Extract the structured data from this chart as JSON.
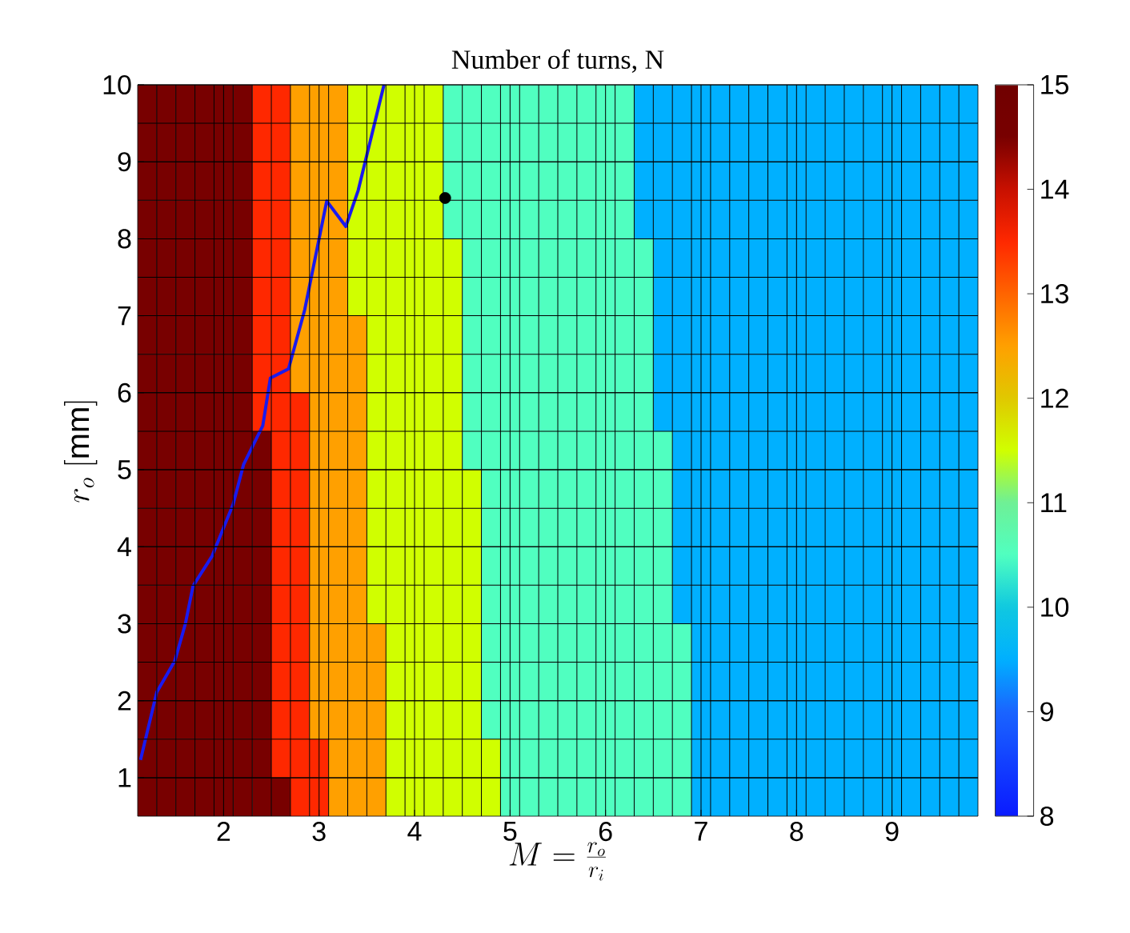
{
  "chart_data": {
    "type": "heatmap",
    "title": "Number of turns, N",
    "xlabel": "M = \\frac{r_o}{r_i}",
    "ylabel": "r_o\\ [\\mathrm{mm}]",
    "cells": [
      [
        14.5,
        14.5,
        14.5,
        14.5,
        14.5,
        14.5,
        13.5,
        13.5,
        12.5,
        12.5,
        12.5,
        11.5,
        11.5,
        11.5,
        11.5,
        11.5,
        10.5,
        10.5,
        10.5,
        10.5,
        10.5,
        10.5,
        10.5,
        10.5,
        10.5,
        10.5,
        9.5,
        9.5,
        9.5,
        9.5,
        9.5,
        9.5,
        9.5,
        9.5,
        9.5,
        9.5,
        9.5,
        9.5,
        9.5,
        9.5,
        9.5,
        9.5,
        9.5,
        9.5
      ],
      [
        14.5,
        14.5,
        14.5,
        14.5,
        14.5,
        14.5,
        13.5,
        13.5,
        12.5,
        12.5,
        12.5,
        11.5,
        11.5,
        11.5,
        11.5,
        11.5,
        10.5,
        10.5,
        10.5,
        10.5,
        10.5,
        10.5,
        10.5,
        10.5,
        10.5,
        10.5,
        9.5,
        9.5,
        9.5,
        9.5,
        9.5,
        9.5,
        9.5,
        9.5,
        9.5,
        9.5,
        9.5,
        9.5,
        9.5,
        9.5,
        9.5,
        9.5,
        9.5,
        9.5
      ],
      [
        14.5,
        14.5,
        14.5,
        14.5,
        14.5,
        14.5,
        13.5,
        13.5,
        12.5,
        12.5,
        12.5,
        11.5,
        11.5,
        11.5,
        11.5,
        11.5,
        10.5,
        10.5,
        10.5,
        10.5,
        10.5,
        10.5,
        10.5,
        10.5,
        10.5,
        10.5,
        9.5,
        9.5,
        9.5,
        9.5,
        9.5,
        9.5,
        9.5,
        9.5,
        9.5,
        9.5,
        9.5,
        9.5,
        9.5,
        9.5,
        9.5,
        9.5,
        9.5,
        9.5
      ],
      [
        14.5,
        14.5,
        14.5,
        14.5,
        14.5,
        14.5,
        13.5,
        13.5,
        12.5,
        12.5,
        12.5,
        11.5,
        11.5,
        11.5,
        11.5,
        11.5,
        10.5,
        10.5,
        10.5,
        10.5,
        10.5,
        10.5,
        10.5,
        10.5,
        10.5,
        10.5,
        9.5,
        9.5,
        9.5,
        9.5,
        9.5,
        9.5,
        9.5,
        9.5,
        9.5,
        9.5,
        9.5,
        9.5,
        9.5,
        9.5,
        9.5,
        9.5,
        9.5,
        9.5
      ],
      [
        14.5,
        14.5,
        14.5,
        14.5,
        14.5,
        14.5,
        13.5,
        13.5,
        12.5,
        12.5,
        12.5,
        11.5,
        11.5,
        11.5,
        11.5,
        11.5,
        11.5,
        10.5,
        10.5,
        10.5,
        10.5,
        10.5,
        10.5,
        10.5,
        10.5,
        10.5,
        10.5,
        9.5,
        9.5,
        9.5,
        9.5,
        9.5,
        9.5,
        9.5,
        9.5,
        9.5,
        9.5,
        9.5,
        9.5,
        9.5,
        9.5,
        9.5,
        9.5,
        9.5
      ],
      [
        14.5,
        14.5,
        14.5,
        14.5,
        14.5,
        14.5,
        13.5,
        13.5,
        12.5,
        12.5,
        12.5,
        11.5,
        11.5,
        11.5,
        11.5,
        11.5,
        11.5,
        10.5,
        10.5,
        10.5,
        10.5,
        10.5,
        10.5,
        10.5,
        10.5,
        10.5,
        10.5,
        9.5,
        9.5,
        9.5,
        9.5,
        9.5,
        9.5,
        9.5,
        9.5,
        9.5,
        9.5,
        9.5,
        9.5,
        9.5,
        9.5,
        9.5,
        9.5,
        9.5
      ],
      [
        14.5,
        14.5,
        14.5,
        14.5,
        14.5,
        14.5,
        13.5,
        13.5,
        12.5,
        12.5,
        12.5,
        12.5,
        11.5,
        11.5,
        11.5,
        11.5,
        11.5,
        10.5,
        10.5,
        10.5,
        10.5,
        10.5,
        10.5,
        10.5,
        10.5,
        10.5,
        10.5,
        9.5,
        9.5,
        9.5,
        9.5,
        9.5,
        9.5,
        9.5,
        9.5,
        9.5,
        9.5,
        9.5,
        9.5,
        9.5,
        9.5,
        9.5,
        9.5,
        9.5
      ],
      [
        14.5,
        14.5,
        14.5,
        14.5,
        14.5,
        14.5,
        13.5,
        13.5,
        12.5,
        12.5,
        12.5,
        12.5,
        11.5,
        11.5,
        11.5,
        11.5,
        11.5,
        10.5,
        10.5,
        10.5,
        10.5,
        10.5,
        10.5,
        10.5,
        10.5,
        10.5,
        10.5,
        9.5,
        9.5,
        9.5,
        9.5,
        9.5,
        9.5,
        9.5,
        9.5,
        9.5,
        9.5,
        9.5,
        9.5,
        9.5,
        9.5,
        9.5,
        9.5,
        9.5
      ],
      [
        14.5,
        14.5,
        14.5,
        14.5,
        14.5,
        14.5,
        13.5,
        13.5,
        13.5,
        12.5,
        12.5,
        12.5,
        11.5,
        11.5,
        11.5,
        11.5,
        11.5,
        10.5,
        10.5,
        10.5,
        10.5,
        10.5,
        10.5,
        10.5,
        10.5,
        10.5,
        10.5,
        9.5,
        9.5,
        9.5,
        9.5,
        9.5,
        9.5,
        9.5,
        9.5,
        9.5,
        9.5,
        9.5,
        9.5,
        9.5,
        9.5,
        9.5,
        9.5,
        9.5
      ],
      [
        14.5,
        14.5,
        14.5,
        14.5,
        14.5,
        14.5,
        14.5,
        13.5,
        13.5,
        12.5,
        12.5,
        12.5,
        11.5,
        11.5,
        11.5,
        11.5,
        11.5,
        10.5,
        10.5,
        10.5,
        10.5,
        10.5,
        10.5,
        10.5,
        10.5,
        10.5,
        10.5,
        10.5,
        9.5,
        9.5,
        9.5,
        9.5,
        9.5,
        9.5,
        9.5,
        9.5,
        9.5,
        9.5,
        9.5,
        9.5,
        9.5,
        9.5,
        9.5,
        9.5
      ],
      [
        14.5,
        14.5,
        14.5,
        14.5,
        14.5,
        14.5,
        14.5,
        13.5,
        13.5,
        12.5,
        12.5,
        12.5,
        11.5,
        11.5,
        11.5,
        11.5,
        11.5,
        11.5,
        10.5,
        10.5,
        10.5,
        10.5,
        10.5,
        10.5,
        10.5,
        10.5,
        10.5,
        10.5,
        9.5,
        9.5,
        9.5,
        9.5,
        9.5,
        9.5,
        9.5,
        9.5,
        9.5,
        9.5,
        9.5,
        9.5,
        9.5,
        9.5,
        9.5,
        9.5
      ],
      [
        14.5,
        14.5,
        14.5,
        14.5,
        14.5,
        14.5,
        14.5,
        13.5,
        13.5,
        12.5,
        12.5,
        12.5,
        11.5,
        11.5,
        11.5,
        11.5,
        11.5,
        11.5,
        10.5,
        10.5,
        10.5,
        10.5,
        10.5,
        10.5,
        10.5,
        10.5,
        10.5,
        10.5,
        9.5,
        9.5,
        9.5,
        9.5,
        9.5,
        9.5,
        9.5,
        9.5,
        9.5,
        9.5,
        9.5,
        9.5,
        9.5,
        9.5,
        9.5,
        9.5
      ],
      [
        14.5,
        14.5,
        14.5,
        14.5,
        14.5,
        14.5,
        14.5,
        13.5,
        13.5,
        12.5,
        12.5,
        12.5,
        11.5,
        11.5,
        11.5,
        11.5,
        11.5,
        11.5,
        10.5,
        10.5,
        10.5,
        10.5,
        10.5,
        10.5,
        10.5,
        10.5,
        10.5,
        10.5,
        9.5,
        9.5,
        9.5,
        9.5,
        9.5,
        9.5,
        9.5,
        9.5,
        9.5,
        9.5,
        9.5,
        9.5,
        9.5,
        9.5,
        9.5,
        9.5
      ],
      [
        14.5,
        14.5,
        14.5,
        14.5,
        14.5,
        14.5,
        14.5,
        13.5,
        13.5,
        12.5,
        12.5,
        12.5,
        11.5,
        11.5,
        11.5,
        11.5,
        11.5,
        11.5,
        10.5,
        10.5,
        10.5,
        10.5,
        10.5,
        10.5,
        10.5,
        10.5,
        10.5,
        10.5,
        9.5,
        9.5,
        9.5,
        9.5,
        9.5,
        9.5,
        9.5,
        9.5,
        9.5,
        9.5,
        9.5,
        9.5,
        9.5,
        9.5,
        9.5,
        9.5
      ],
      [
        14.5,
        14.5,
        14.5,
        14.5,
        14.5,
        14.5,
        14.5,
        13.5,
        13.5,
        12.5,
        12.5,
        12.5,
        12.5,
        11.5,
        11.5,
        11.5,
        11.5,
        11.5,
        10.5,
        10.5,
        10.5,
        10.5,
        10.5,
        10.5,
        10.5,
        10.5,
        10.5,
        10.5,
        10.5,
        9.5,
        9.5,
        9.5,
        9.5,
        9.5,
        9.5,
        9.5,
        9.5,
        9.5,
        9.5,
        9.5,
        9.5,
        9.5,
        9.5,
        9.5
      ],
      [
        14.5,
        14.5,
        14.5,
        14.5,
        14.5,
        14.5,
        14.5,
        13.5,
        13.5,
        12.5,
        12.5,
        12.5,
        12.5,
        11.5,
        11.5,
        11.5,
        11.5,
        11.5,
        10.5,
        10.5,
        10.5,
        10.5,
        10.5,
        10.5,
        10.5,
        10.5,
        10.5,
        10.5,
        10.5,
        9.5,
        9.5,
        9.5,
        9.5,
        9.5,
        9.5,
        9.5,
        9.5,
        9.5,
        9.5,
        9.5,
        9.5,
        9.5,
        9.5,
        9.5
      ],
      [
        14.5,
        14.5,
        14.5,
        14.5,
        14.5,
        14.5,
        14.5,
        13.5,
        13.5,
        12.5,
        12.5,
        12.5,
        12.5,
        11.5,
        11.5,
        11.5,
        11.5,
        11.5,
        10.5,
        10.5,
        10.5,
        10.5,
        10.5,
        10.5,
        10.5,
        10.5,
        10.5,
        10.5,
        10.5,
        9.5,
        9.5,
        9.5,
        9.5,
        9.5,
        9.5,
        9.5,
        9.5,
        9.5,
        9.5,
        9.5,
        9.5,
        9.5,
        9.5,
        9.5
      ],
      [
        14.5,
        14.5,
        14.5,
        14.5,
        14.5,
        14.5,
        14.5,
        13.5,
        13.5,
        13.5,
        12.5,
        12.5,
        12.5,
        11.5,
        11.5,
        11.5,
        11.5,
        11.5,
        11.5,
        10.5,
        10.5,
        10.5,
        10.5,
        10.5,
        10.5,
        10.5,
        10.5,
        10.5,
        10.5,
        9.5,
        9.5,
        9.5,
        9.5,
        9.5,
        9.5,
        9.5,
        9.5,
        9.5,
        9.5,
        9.5,
        9.5,
        9.5,
        9.5,
        9.5
      ],
      [
        14.5,
        14.5,
        14.5,
        14.5,
        14.5,
        14.5,
        14.5,
        14.5,
        13.5,
        13.5,
        12.5,
        12.5,
        12.5,
        11.5,
        11.5,
        11.5,
        11.5,
        11.5,
        11.5,
        10.5,
        10.5,
        10.5,
        10.5,
        10.5,
        10.5,
        10.5,
        10.5,
        10.5,
        10.5,
        9.5,
        9.5,
        9.5,
        9.5,
        9.5,
        9.5,
        9.5,
        9.5,
        9.5,
        9.5,
        9.5,
        9.5,
        9.5,
        9.5,
        9.5
      ]
    ],
    "xlim": [
      1.1,
      9.9
    ],
    "xticks": [
      2,
      3,
      4,
      5,
      6,
      7,
      8,
      9
    ],
    "ylim": [
      0.5,
      10
    ],
    "yticks": [
      1,
      2,
      3,
      4,
      5,
      6,
      7,
      8,
      9,
      10
    ],
    "grid": true,
    "clim": [
      8,
      15
    ],
    "cticks": [
      8,
      9,
      10,
      11,
      12,
      13,
      14,
      15
    ],
    "series": [
      {
        "type": "line",
        "color": "#1a1aee",
        "marker": "none",
        "x": [
          1.13,
          1.3,
          1.49,
          1.6,
          1.68,
          1.88,
          2.1,
          2.21,
          2.41,
          2.49,
          2.68,
          2.85,
          3.08,
          3.28,
          3.41,
          3.68
        ],
        "values": [
          1.23,
          2.11,
          2.52,
          3.0,
          3.49,
          3.88,
          4.55,
          5.07,
          5.57,
          6.19,
          6.31,
          7.08,
          8.49,
          8.16,
          8.63,
          10.0
        ]
      },
      {
        "type": "scatter",
        "color": "#000000",
        "marker": "circle",
        "x": [
          4.32
        ],
        "values": [
          8.53
        ]
      }
    ]
  }
}
